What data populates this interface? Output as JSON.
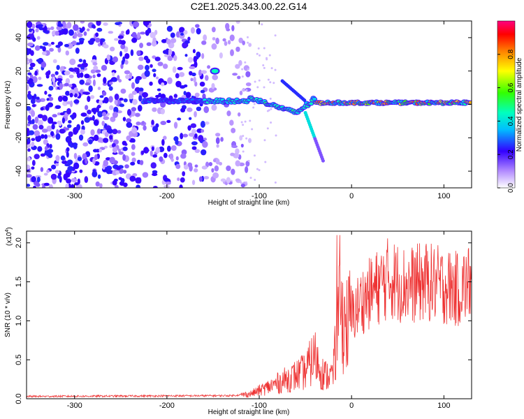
{
  "chart_data": [
    {
      "type": "heatmap",
      "title": "C2E1.2025.343.00.22.G14",
      "xlabel": "Height of straight line (km)",
      "ylabel": "Frequency (Hz)",
      "xlim": [
        -352,
        130
      ],
      "ylim": [
        -50,
        50
      ],
      "xticks": [
        -300,
        -200,
        -100,
        0,
        100
      ],
      "yticks": [
        40,
        20,
        0,
        -20,
        -40
      ],
      "colorbar": {
        "label": "Normalized spectral amplitude",
        "range": [
          0,
          1
        ],
        "ticks": [
          0.0,
          0.2,
          0.4,
          0.6,
          0.8
        ]
      },
      "features": {
        "noise_region_x": [
          -352,
          -110
        ],
        "main_line_start_x": -225,
        "main_line_freq": 2,
        "mid_dip_x": [
          -100,
          -60
        ],
        "mid_dip_freq": -5,
        "branch_end": {
          "x": -30,
          "y": -35
        },
        "blob": {
          "x": -148,
          "y": 20
        }
      }
    },
    {
      "type": "line",
      "xlabel": "Height of straight line (km)",
      "ylabel": "SNR (10 * v/v)",
      "scale_note": "(x10^4)",
      "scale_base": "(x10",
      "scale_exp": "4",
      "scale_close": ")",
      "xlim": [
        -352,
        130
      ],
      "ylim": [
        0,
        2.15
      ],
      "xticks": [
        -300,
        -200,
        -100,
        0,
        100
      ],
      "yticks": [
        "0.0",
        "0.5",
        "1.0",
        "1.5",
        "2.0"
      ],
      "series": [
        {
          "name": "SNR",
          "color": "#ee3333",
          "anchors_x": [
            -352,
            -130,
            -110,
            -90,
            -70,
            -50,
            -40,
            -30,
            -20,
            -15,
            -10,
            -5,
            0,
            10,
            20,
            40,
            60,
            80,
            100,
            115,
            130
          ],
          "anchors_y": [
            0.03,
            0.04,
            0.06,
            0.15,
            0.25,
            0.35,
            0.55,
            0.3,
            0.3,
            1.0,
            1.05,
            0.95,
            1.05,
            1.25,
            1.35,
            1.55,
            1.45,
            1.5,
            1.45,
            1.4,
            1.5
          ]
        }
      ]
    }
  ]
}
